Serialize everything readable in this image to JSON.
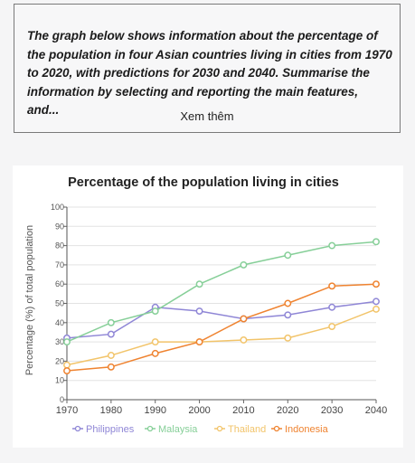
{
  "prompt": {
    "text": "The graph below shows information about the percentage of the population in four Asian countries living in cities from 1970 to 2020, with predictions for 2030 and 2040. Summarise the information by selecting and reporting the main features, and...",
    "see_more": "Xem thêm"
  },
  "chart_data": {
    "type": "line",
    "title": "Percentage of the population living in cities",
    "xlabel": "",
    "ylabel": "Percentage (%) of total population",
    "x": [
      1970,
      1980,
      1990,
      2000,
      2010,
      2020,
      2030,
      2040
    ],
    "xlim": [
      1970,
      2040
    ],
    "ylim": [
      0,
      100
    ],
    "yticks": [
      0,
      10,
      20,
      30,
      40,
      50,
      60,
      70,
      80,
      90,
      100
    ],
    "grid": true,
    "legend_position": "bottom",
    "series": [
      {
        "name": "Philippines",
        "color": "#8f86d6",
        "values": [
          32,
          34,
          48,
          46,
          42,
          44,
          48,
          51
        ]
      },
      {
        "name": "Malaysia",
        "color": "#86cf98",
        "values": [
          30,
          40,
          46,
          60,
          70,
          75,
          80,
          82
        ]
      },
      {
        "name": "Thailand",
        "color": "#f2c46a",
        "values": [
          18,
          23,
          30,
          30,
          31,
          32,
          38,
          47
        ]
      },
      {
        "name": "Indonesia",
        "color": "#ef8330",
        "values": [
          15,
          17,
          24,
          30,
          42,
          50,
          59,
          60
        ]
      }
    ]
  }
}
